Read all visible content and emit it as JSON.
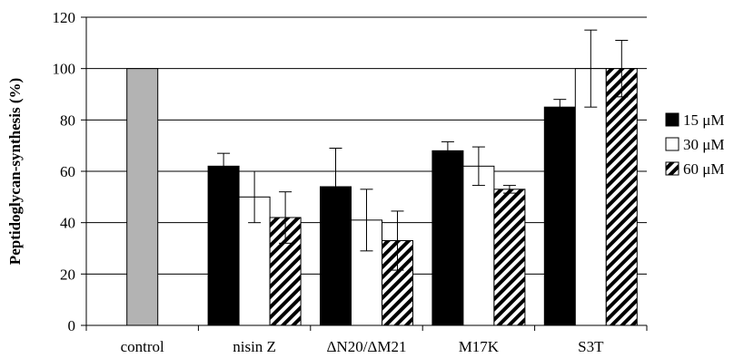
{
  "chart_data": {
    "type": "bar",
    "title": "",
    "xlabel": "",
    "ylabel": "Peptidoglycan-synthesis (%)",
    "ylim": [
      0,
      120
    ],
    "yticks": [
      0,
      20,
      40,
      60,
      80,
      100,
      120
    ],
    "grid": true,
    "legend_position": "right",
    "categories": [
      "control",
      "nisin Z",
      "ΔN20/ΔM21",
      "M17K",
      "S3T"
    ],
    "control": {
      "value": 100,
      "color": "#b3b3b3"
    },
    "series": [
      {
        "name": "15 μM",
        "fill": "solid-black",
        "values": [
          null,
          62,
          54,
          68,
          85
        ],
        "errors": [
          null,
          5,
          15,
          3.5,
          3
        ]
      },
      {
        "name": "30 μM",
        "fill": "white",
        "values": [
          null,
          50,
          41,
          62,
          100
        ],
        "errors": [
          null,
          10,
          12,
          7.5,
          15
        ]
      },
      {
        "name": "60 μM",
        "fill": "diagonal-hatch",
        "values": [
          null,
          42,
          33,
          53,
          100
        ],
        "errors": [
          null,
          10,
          11.5,
          1.5,
          11
        ]
      }
    ]
  }
}
